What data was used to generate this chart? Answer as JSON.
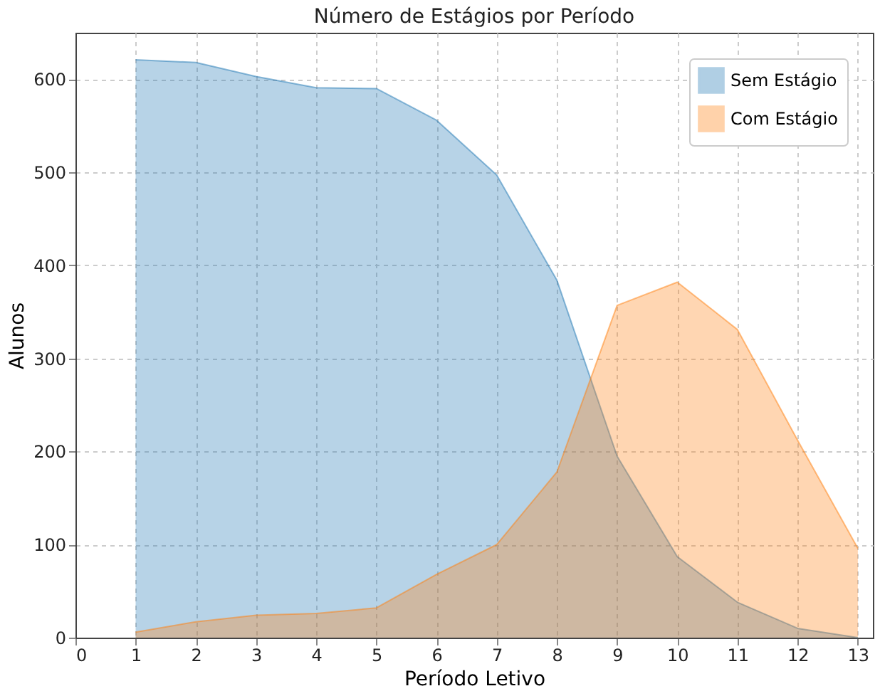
{
  "chart_data": {
    "type": "area",
    "title": "Número de Estágios por Período",
    "xlabel": "Período Letivo",
    "ylabel": "Alunos",
    "x": [
      1,
      2,
      3,
      4,
      5,
      6,
      7,
      8,
      9,
      10,
      11,
      12,
      13
    ],
    "series": [
      {
        "name": "Sem Estágio",
        "color": "#1f77b4",
        "values": [
          621,
          618,
          603,
          591,
          590,
          556,
          497,
          384,
          195,
          87,
          38,
          10,
          0
        ]
      },
      {
        "name": "Com Estágio",
        "color": "#ff7f0e",
        "values": [
          6,
          17,
          24,
          26,
          32,
          68,
          100,
          178,
          357,
          382,
          331,
          212,
          96
        ]
      }
    ],
    "xlim": [
      0,
      13.25
    ],
    "xticks": [
      0,
      1,
      2,
      3,
      4,
      5,
      6,
      7,
      8,
      9,
      10,
      11,
      12,
      13
    ],
    "ylim": [
      0,
      650
    ],
    "yticks": [
      0,
      100,
      200,
      300,
      400,
      500,
      600
    ],
    "grid": true,
    "legend": "top right"
  }
}
